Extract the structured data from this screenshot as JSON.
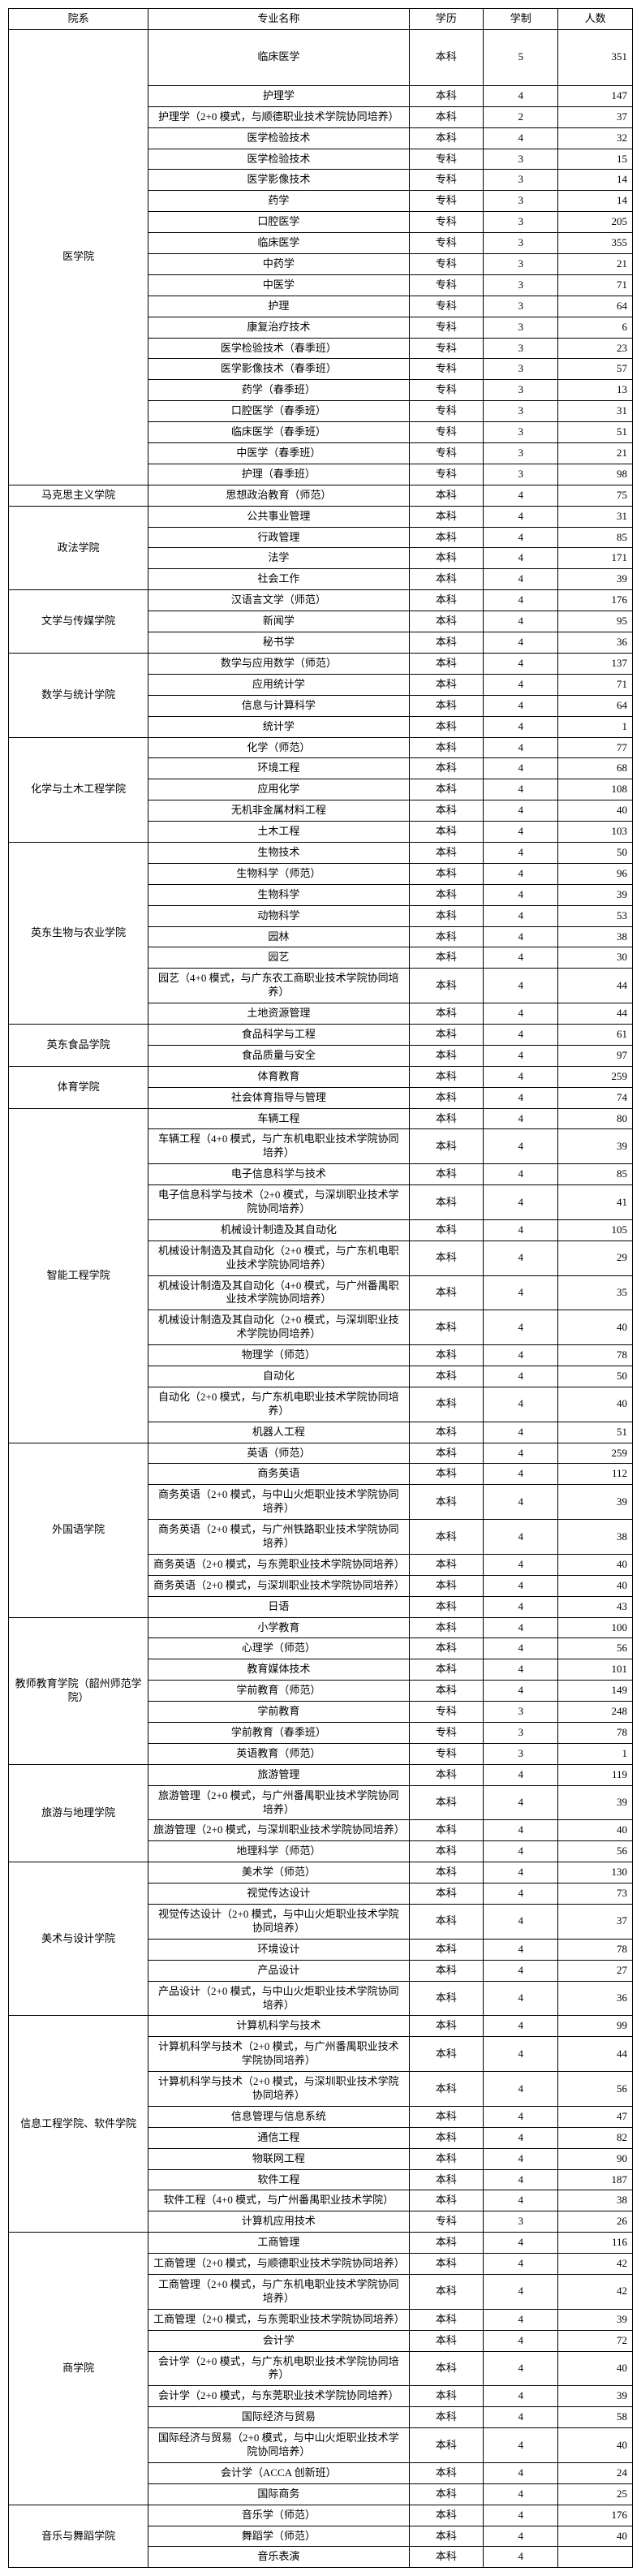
{
  "headers": {
    "dept": "院系",
    "major": "专业名称",
    "degree": "学历",
    "years": "学制",
    "count": "人数"
  },
  "departments": [
    {
      "name": "医学院",
      "majors": [
        {
          "name": "临床医学",
          "degree": "本科",
          "years": "5",
          "count": "351",
          "tall": true
        },
        {
          "name": "护理学",
          "degree": "本科",
          "years": "4",
          "count": "147"
        },
        {
          "name": "护理学（2+0 模式，与顺德职业技术学院协同培养）",
          "degree": "本科",
          "years": "2",
          "count": "37"
        },
        {
          "name": "医学检验技术",
          "degree": "本科",
          "years": "4",
          "count": "32"
        },
        {
          "name": "医学检验技术",
          "degree": "专科",
          "years": "3",
          "count": "15"
        },
        {
          "name": "医学影像技术",
          "degree": "专科",
          "years": "3",
          "count": "14"
        },
        {
          "name": "药学",
          "degree": "专科",
          "years": "3",
          "count": "14"
        },
        {
          "name": "口腔医学",
          "degree": "专科",
          "years": "3",
          "count": "205"
        },
        {
          "name": "临床医学",
          "degree": "专科",
          "years": "3",
          "count": "355"
        },
        {
          "name": "中药学",
          "degree": "专科",
          "years": "3",
          "count": "21"
        },
        {
          "name": "中医学",
          "degree": "专科",
          "years": "3",
          "count": "71"
        },
        {
          "name": "护理",
          "degree": "专科",
          "years": "3",
          "count": "64"
        },
        {
          "name": "康复治疗技术",
          "degree": "专科",
          "years": "3",
          "count": "6"
        },
        {
          "name": "医学检验技术（春季班）",
          "degree": "专科",
          "years": "3",
          "count": "23"
        },
        {
          "name": "医学影像技术（春季班）",
          "degree": "专科",
          "years": "3",
          "count": "57"
        },
        {
          "name": "药学（春季班）",
          "degree": "专科",
          "years": "3",
          "count": "13"
        },
        {
          "name": "口腔医学（春季班）",
          "degree": "专科",
          "years": "3",
          "count": "31"
        },
        {
          "name": "临床医学（春季班）",
          "degree": "专科",
          "years": "3",
          "count": "51"
        },
        {
          "name": "中医学（春季班）",
          "degree": "专科",
          "years": "3",
          "count": "21"
        },
        {
          "name": "护理（春季班）",
          "degree": "专科",
          "years": "3",
          "count": "98"
        }
      ]
    },
    {
      "name": "马克思主义学院",
      "majors": [
        {
          "name": "思想政治教育（师范）",
          "degree": "本科",
          "years": "4",
          "count": "75"
        }
      ]
    },
    {
      "name": "政法学院",
      "majors": [
        {
          "name": "公共事业管理",
          "degree": "本科",
          "years": "4",
          "count": "31"
        },
        {
          "name": "行政管理",
          "degree": "本科",
          "years": "4",
          "count": "85"
        },
        {
          "name": "法学",
          "degree": "本科",
          "years": "4",
          "count": "171"
        },
        {
          "name": "社会工作",
          "degree": "本科",
          "years": "4",
          "count": "39"
        }
      ]
    },
    {
      "name": "文学与传媒学院",
      "majors": [
        {
          "name": "汉语言文学（师范）",
          "degree": "本科",
          "years": "4",
          "count": "176"
        },
        {
          "name": "新闻学",
          "degree": "本科",
          "years": "4",
          "count": "95"
        },
        {
          "name": "秘书学",
          "degree": "本科",
          "years": "4",
          "count": "36"
        }
      ]
    },
    {
      "name": "数学与统计学院",
      "majors": [
        {
          "name": "数学与应用数学（师范）",
          "degree": "本科",
          "years": "4",
          "count": "137"
        },
        {
          "name": "应用统计学",
          "degree": "本科",
          "years": "4",
          "count": "71"
        },
        {
          "name": "信息与计算科学",
          "degree": "本科",
          "years": "4",
          "count": "64"
        },
        {
          "name": "统计学",
          "degree": "本科",
          "years": "4",
          "count": "1"
        }
      ]
    },
    {
      "name": "化学与土木工程学院",
      "majors": [
        {
          "name": "化学（师范）",
          "degree": "本科",
          "years": "4",
          "count": "77"
        },
        {
          "name": "环境工程",
          "degree": "本科",
          "years": "4",
          "count": "68"
        },
        {
          "name": "应用化学",
          "degree": "本科",
          "years": "4",
          "count": "108"
        },
        {
          "name": "无机非金属材料工程",
          "degree": "本科",
          "years": "4",
          "count": "40"
        },
        {
          "name": "土木工程",
          "degree": "本科",
          "years": "4",
          "count": "103"
        }
      ]
    },
    {
      "name": "英东生物与农业学院",
      "majors": [
        {
          "name": "生物技术",
          "degree": "本科",
          "years": "4",
          "count": "50"
        },
        {
          "name": "生物科学（师范）",
          "degree": "本科",
          "years": "4",
          "count": "96"
        },
        {
          "name": "生物科学",
          "degree": "本科",
          "years": "4",
          "count": "39"
        },
        {
          "name": "动物科学",
          "degree": "本科",
          "years": "4",
          "count": "53"
        },
        {
          "name": "园林",
          "degree": "本科",
          "years": "4",
          "count": "38"
        },
        {
          "name": "园艺",
          "degree": "本科",
          "years": "4",
          "count": "30"
        },
        {
          "name": "园艺（4+0 模式，与广东农工商职业技术学院协同培养）",
          "degree": "本科",
          "years": "4",
          "count": "44"
        },
        {
          "name": "土地资源管理",
          "degree": "本科",
          "years": "4",
          "count": "44"
        }
      ]
    },
    {
      "name": "英东食品学院",
      "majors": [
        {
          "name": "食品科学与工程",
          "degree": "本科",
          "years": "4",
          "count": "61"
        },
        {
          "name": "食品质量与安全",
          "degree": "本科",
          "years": "4",
          "count": "97"
        }
      ]
    },
    {
      "name": "体育学院",
      "majors": [
        {
          "name": "体育教育",
          "degree": "本科",
          "years": "4",
          "count": "259"
        },
        {
          "name": "社会体育指导与管理",
          "degree": "本科",
          "years": "4",
          "count": "74"
        }
      ]
    },
    {
      "name": "智能工程学院",
      "majors": [
        {
          "name": "车辆工程",
          "degree": "本科",
          "years": "4",
          "count": "80"
        },
        {
          "name": "车辆工程（4+0 模式，与广东机电职业技术学院协同培养）",
          "degree": "本科",
          "years": "4",
          "count": "39"
        },
        {
          "name": "电子信息科学与技术",
          "degree": "本科",
          "years": "4",
          "count": "85"
        },
        {
          "name": "电子信息科学与技术（2+0 模式，与深圳职业技术学院协同培养）",
          "degree": "本科",
          "years": "4",
          "count": "41"
        },
        {
          "name": "机械设计制造及其自动化",
          "degree": "本科",
          "years": "4",
          "count": "105"
        },
        {
          "name": "机械设计制造及其自动化（2+0 模式，与广东机电职业技术学院协同培养）",
          "degree": "本科",
          "years": "4",
          "count": "29"
        },
        {
          "name": "机械设计制造及其自动化（4+0 模式，与广州番禺职业技术学院协同培养）",
          "degree": "本科",
          "years": "4",
          "count": "35"
        },
        {
          "name": "机械设计制造及其自动化（2+0 模式，与深圳职业技术学院协同培养）",
          "degree": "本科",
          "years": "4",
          "count": "40"
        },
        {
          "name": "物理学（师范）",
          "degree": "本科",
          "years": "4",
          "count": "78"
        },
        {
          "name": "自动化",
          "degree": "本科",
          "years": "4",
          "count": "50"
        },
        {
          "name": "自动化（2+0 模式，与广东机电职业技术学院协同培养）",
          "degree": "本科",
          "years": "4",
          "count": "40"
        },
        {
          "name": "机器人工程",
          "degree": "本科",
          "years": "4",
          "count": "51"
        }
      ]
    },
    {
      "name": "外国语学院",
      "majors": [
        {
          "name": "英语（师范）",
          "degree": "本科",
          "years": "4",
          "count": "259"
        },
        {
          "name": "商务英语",
          "degree": "本科",
          "years": "4",
          "count": "112"
        },
        {
          "name": "商务英语（2+0 模式，与中山火炬职业技术学院协同培养）",
          "degree": "本科",
          "years": "4",
          "count": "39"
        },
        {
          "name": "商务英语（2+0 模式，与广州铁路职业技术学院协同培养）",
          "degree": "本科",
          "years": "4",
          "count": "38"
        },
        {
          "name": "商务英语（2+0 模式，与东莞职业技术学院协同培养）",
          "degree": "本科",
          "years": "4",
          "count": "40"
        },
        {
          "name": "商务英语（2+0 模式，与深圳职业技术学院协同培养）",
          "degree": "本科",
          "years": "4",
          "count": "40"
        },
        {
          "name": "日语",
          "degree": "本科",
          "years": "4",
          "count": "43"
        }
      ]
    },
    {
      "name": "教师教育学院（韶州师范学院）",
      "majors": [
        {
          "name": "小学教育",
          "degree": "本科",
          "years": "4",
          "count": "100"
        },
        {
          "name": "心理学（师范）",
          "degree": "本科",
          "years": "4",
          "count": "56"
        },
        {
          "name": "教育媒体技术",
          "degree": "本科",
          "years": "4",
          "count": "101"
        },
        {
          "name": "学前教育（师范）",
          "degree": "本科",
          "years": "4",
          "count": "149"
        },
        {
          "name": "学前教育",
          "degree": "专科",
          "years": "3",
          "count": "248"
        },
        {
          "name": "学前教育（春季班）",
          "degree": "专科",
          "years": "3",
          "count": "78"
        },
        {
          "name": "英语教育（师范）",
          "degree": "专科",
          "years": "3",
          "count": "1"
        }
      ]
    },
    {
      "name": "旅游与地理学院",
      "majors": [
        {
          "name": "旅游管理",
          "degree": "本科",
          "years": "4",
          "count": "119"
        },
        {
          "name": "旅游管理（2+0 模式，与广州番禺职业技术学院协同培养）",
          "degree": "本科",
          "years": "4",
          "count": "39"
        },
        {
          "name": "旅游管理（2+0 模式，与深圳职业技术学院协同培养）",
          "degree": "本科",
          "years": "4",
          "count": "40"
        },
        {
          "name": "地理科学（师范）",
          "degree": "本科",
          "years": "4",
          "count": "56"
        }
      ]
    },
    {
      "name": "美术与设计学院",
      "majors": [
        {
          "name": "美术学（师范）",
          "degree": "本科",
          "years": "4",
          "count": "130"
        },
        {
          "name": "视觉传达设计",
          "degree": "本科",
          "years": "4",
          "count": "73"
        },
        {
          "name": "视觉传达设计（2+0 模式，与中山火炬职业技术学院协同培养）",
          "degree": "本科",
          "years": "4",
          "count": "37"
        },
        {
          "name": "环境设计",
          "degree": "本科",
          "years": "4",
          "count": "78"
        },
        {
          "name": "产品设计",
          "degree": "本科",
          "years": "4",
          "count": "27"
        },
        {
          "name": "产品设计（2+0 模式，与中山火炬职业技术学院协同培养）",
          "degree": "本科",
          "years": "4",
          "count": "36"
        }
      ]
    },
    {
      "name": "信息工程学院、软件学院",
      "majors": [
        {
          "name": "计算机科学与技术",
          "degree": "本科",
          "years": "4",
          "count": "99"
        },
        {
          "name": "计算机科学与技术（2+0 模式，与广州番禺职业技术学院协同培养）",
          "degree": "本科",
          "years": "4",
          "count": "44"
        },
        {
          "name": "计算机科学与技术（2+0 模式，与深圳职业技术学院协同培养）",
          "degree": "本科",
          "years": "4",
          "count": "56"
        },
        {
          "name": "信息管理与信息系统",
          "degree": "本科",
          "years": "4",
          "count": "47"
        },
        {
          "name": "通信工程",
          "degree": "本科",
          "years": "4",
          "count": "82"
        },
        {
          "name": "物联网工程",
          "degree": "本科",
          "years": "4",
          "count": "90"
        },
        {
          "name": "软件工程",
          "degree": "本科",
          "years": "4",
          "count": "187"
        },
        {
          "name": "软件工程（4+0 模式，与广州番禺职业技术学院）",
          "degree": "本科",
          "years": "4",
          "count": "38"
        },
        {
          "name": "计算机应用技术",
          "degree": "专科",
          "years": "3",
          "count": "26"
        }
      ]
    },
    {
      "name": "商学院",
      "majors": [
        {
          "name": "工商管理",
          "degree": "本科",
          "years": "4",
          "count": "116"
        },
        {
          "name": "工商管理（2+0 模式，与顺德职业技术学院协同培养）",
          "degree": "本科",
          "years": "4",
          "count": "42"
        },
        {
          "name": "工商管理（2+0 模式，与广东机电职业技术学院协同培养）",
          "degree": "本科",
          "years": "4",
          "count": "42"
        },
        {
          "name": "工商管理（2+0 模式，与东莞职业技术学院协同培养）",
          "degree": "本科",
          "years": "4",
          "count": "39"
        },
        {
          "name": "会计学",
          "degree": "本科",
          "years": "4",
          "count": "72"
        },
        {
          "name": "会计学（2+0 模式，与广东机电职业技术学院协同培养）",
          "degree": "本科",
          "years": "4",
          "count": "40"
        },
        {
          "name": "会计学（2+0 模式，与东莞职业技术学院协同培养）",
          "degree": "本科",
          "years": "4",
          "count": "39"
        },
        {
          "name": "国际经济与贸易",
          "degree": "本科",
          "years": "4",
          "count": "58"
        },
        {
          "name": "国际经济与贸易（2+0 模式，与中山火炬职业技术学院协同培养）",
          "degree": "本科",
          "years": "4",
          "count": "40"
        },
        {
          "name": "会计学（ACCA 创新班）",
          "degree": "本科",
          "years": "4",
          "count": "24"
        },
        {
          "name": "国际商务",
          "degree": "本科",
          "years": "4",
          "count": "25"
        }
      ]
    },
    {
      "name": "音乐与舞蹈学院",
      "majors": [
        {
          "name": "音乐学（师范）",
          "degree": "本科",
          "years": "4",
          "count": "176"
        },
        {
          "name": "舞蹈学（师范）",
          "degree": "本科",
          "years": "4",
          "count": "40"
        },
        {
          "name": "音乐表演",
          "degree": "本科",
          "years": "4",
          "count": ""
        }
      ]
    }
  ]
}
